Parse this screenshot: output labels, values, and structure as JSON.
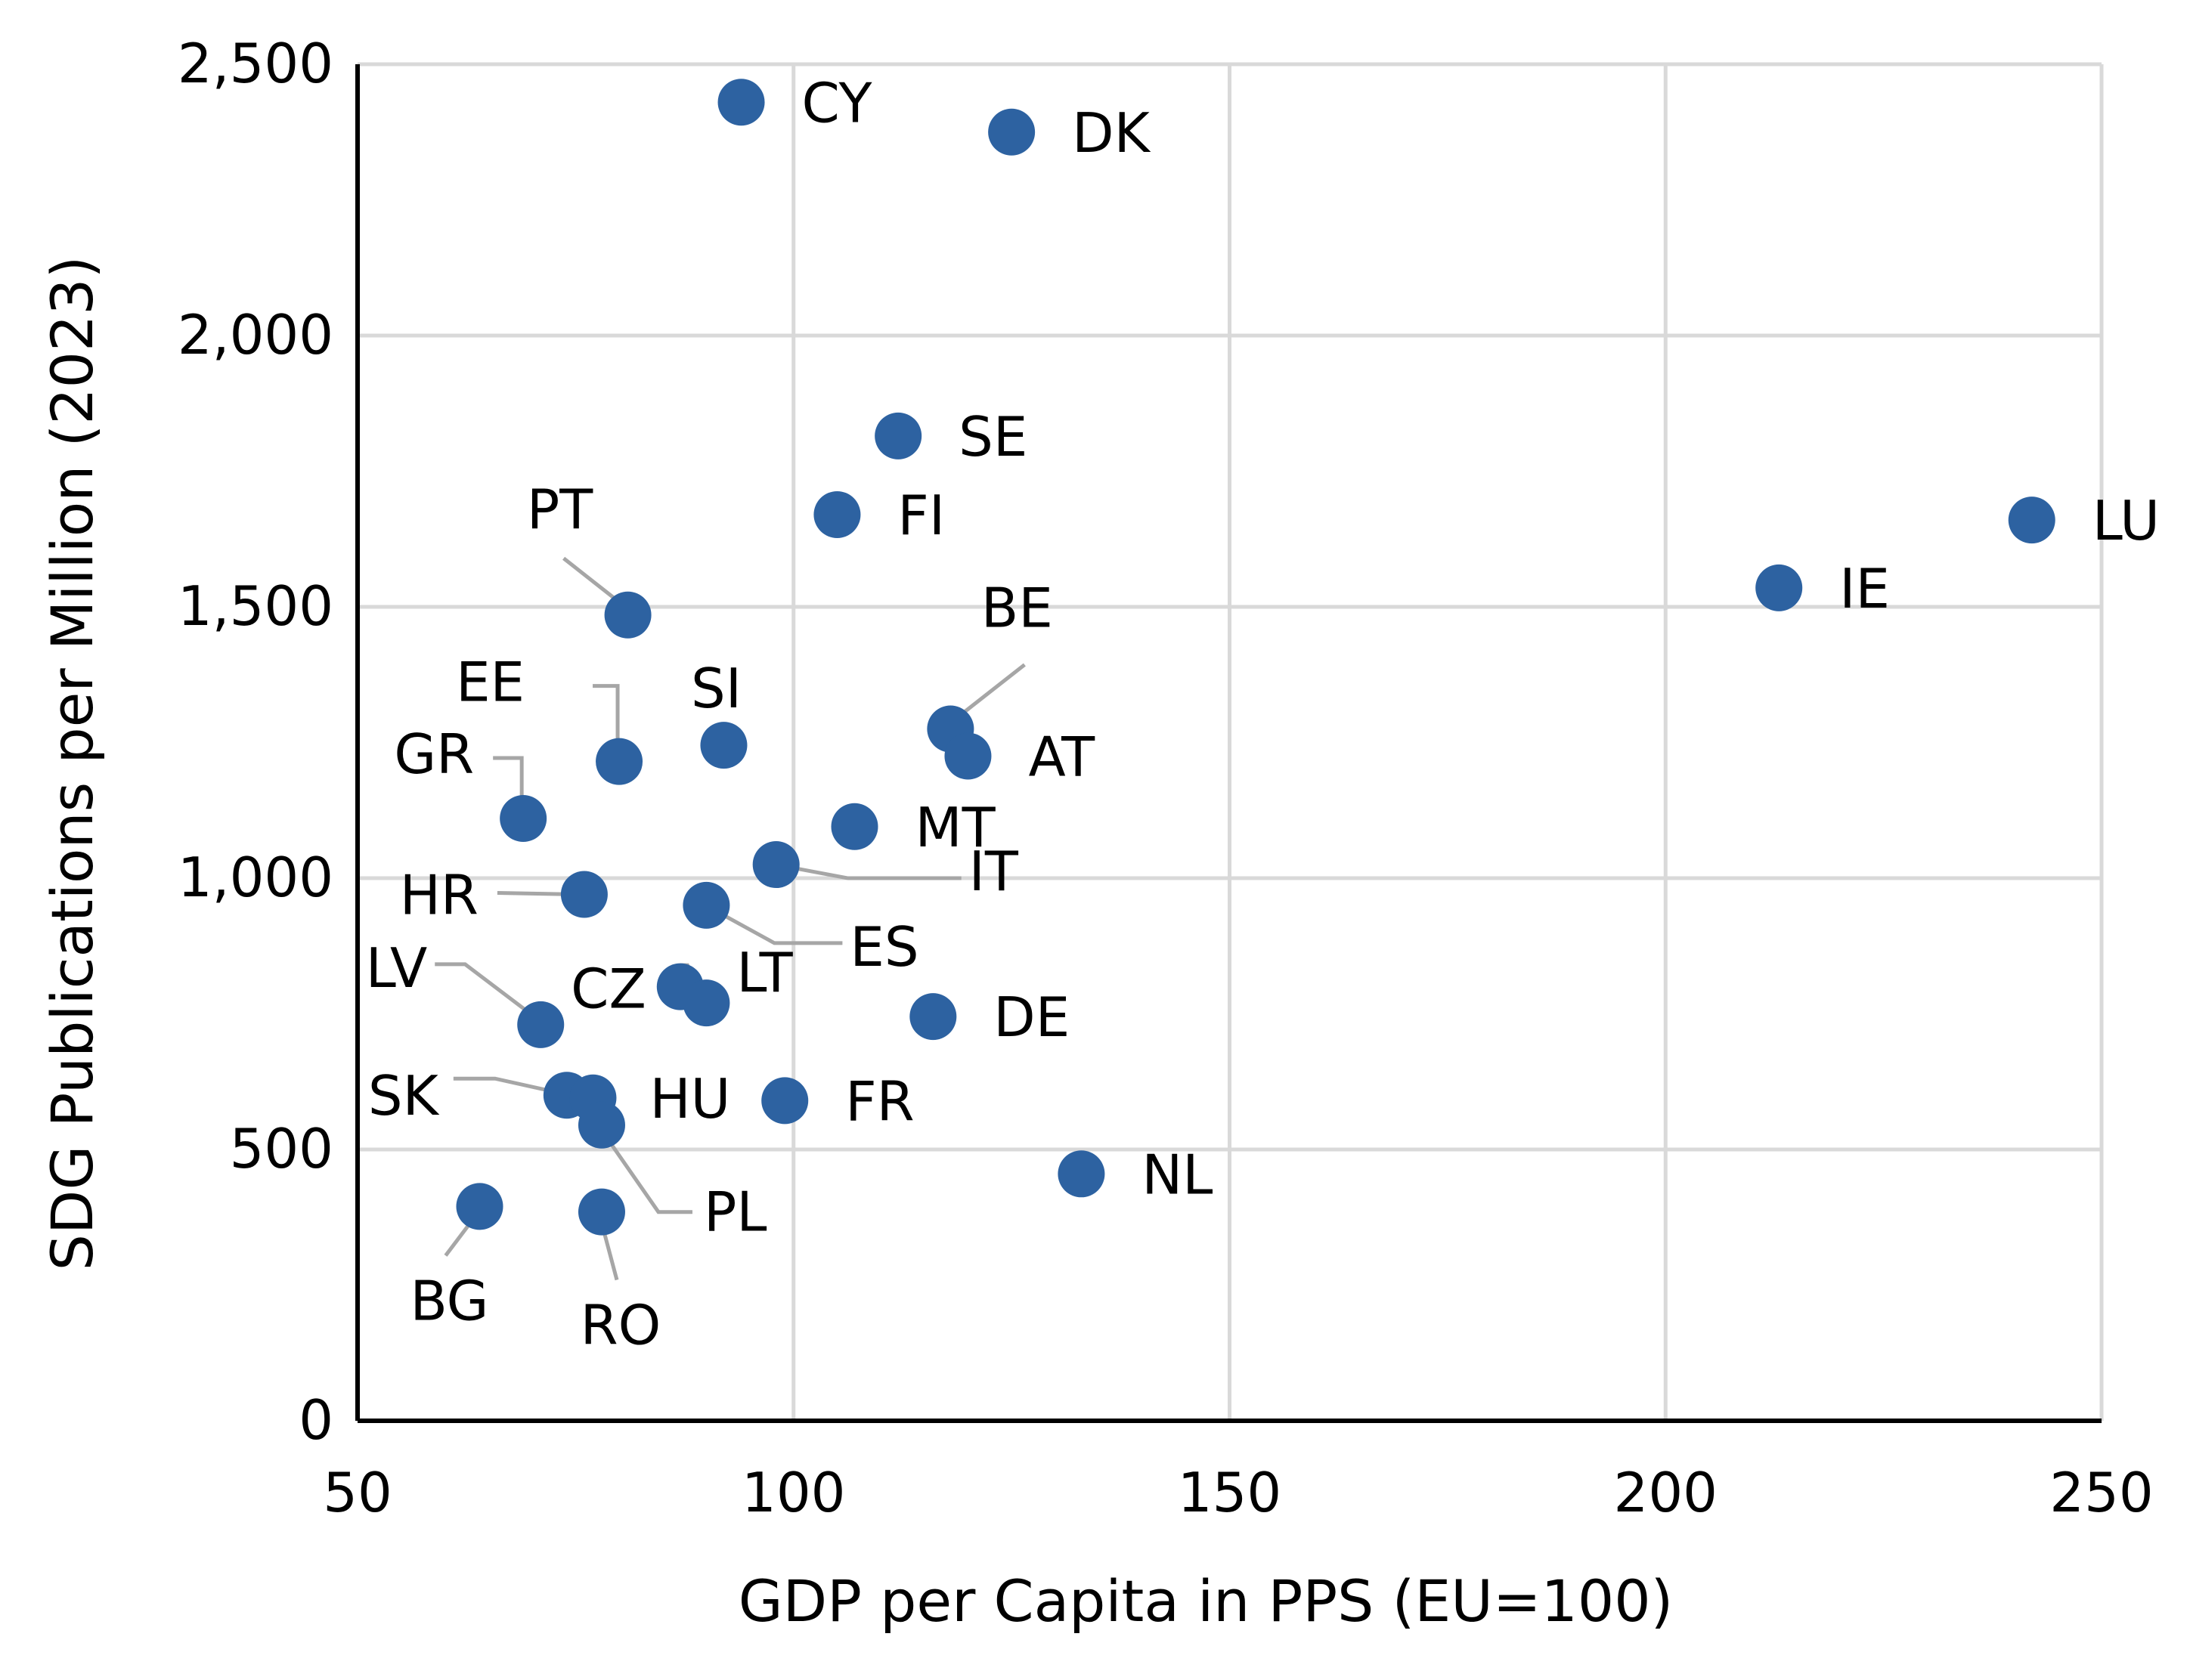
{
  "chart_data": {
    "type": "scatter",
    "title": "",
    "xlabel": "GDP per Capita in PPS (EU=100)",
    "ylabel": "SDG Publications per Million (2023)",
    "xlim": [
      50,
      250
    ],
    "ylim": [
      0,
      2500
    ],
    "x_ticks": [
      "50",
      "100",
      "150",
      "200",
      "250"
    ],
    "y_ticks": [
      "0",
      "500",
      "1,000",
      "1,500",
      "2,000",
      "2,500"
    ],
    "grid": true,
    "legend": "none",
    "marker_color": "#2d62a1",
    "leader_color": "#a6a6a6",
    "grid_color": "#d9d9d9",
    "points": [
      {
        "label": "CY",
        "x": 94,
        "y": 2430
      },
      {
        "label": "DK",
        "x": 125,
        "y": 2375
      },
      {
        "label": "SE",
        "x": 112,
        "y": 1815
      },
      {
        "label": "FI",
        "x": 105,
        "y": 1670
      },
      {
        "label": "LU",
        "x": 242,
        "y": 1660
      },
      {
        "label": "IE",
        "x": 213,
        "y": 1535
      },
      {
        "label": "PT",
        "x": 81,
        "y": 1485
      },
      {
        "label": "BE",
        "x": 118,
        "y": 1275
      },
      {
        "label": "SI",
        "x": 92,
        "y": 1245
      },
      {
        "label": "AT",
        "x": 120,
        "y": 1225
      },
      {
        "label": "EE",
        "x": 80,
        "y": 1215
      },
      {
        "label": "GR",
        "x": 69,
        "y": 1110
      },
      {
        "label": "MT",
        "x": 107,
        "y": 1095
      },
      {
        "label": "IT",
        "x": 98,
        "y": 1025
      },
      {
        "label": "HR",
        "x": 76,
        "y": 970
      },
      {
        "label": "ES",
        "x": 90,
        "y": 950
      },
      {
        "label": "CZ",
        "x": 87,
        "y": 800
      },
      {
        "label": "LT",
        "x": 90,
        "y": 770
      },
      {
        "label": "DE",
        "x": 116,
        "y": 745
      },
      {
        "label": "LV",
        "x": 71,
        "y": 730
      },
      {
        "label": "SK",
        "x": 74,
        "y": 600
      },
      {
        "label": "HU",
        "x": 77,
        "y": 595
      },
      {
        "label": "FR",
        "x": 99,
        "y": 590
      },
      {
        "label": "PL",
        "x": 78,
        "y": 545
      },
      {
        "label": "NL",
        "x": 133,
        "y": 455
      },
      {
        "label": "BG",
        "x": 64,
        "y": 395
      },
      {
        "label": "RO",
        "x": 78,
        "y": 385
      }
    ]
  }
}
